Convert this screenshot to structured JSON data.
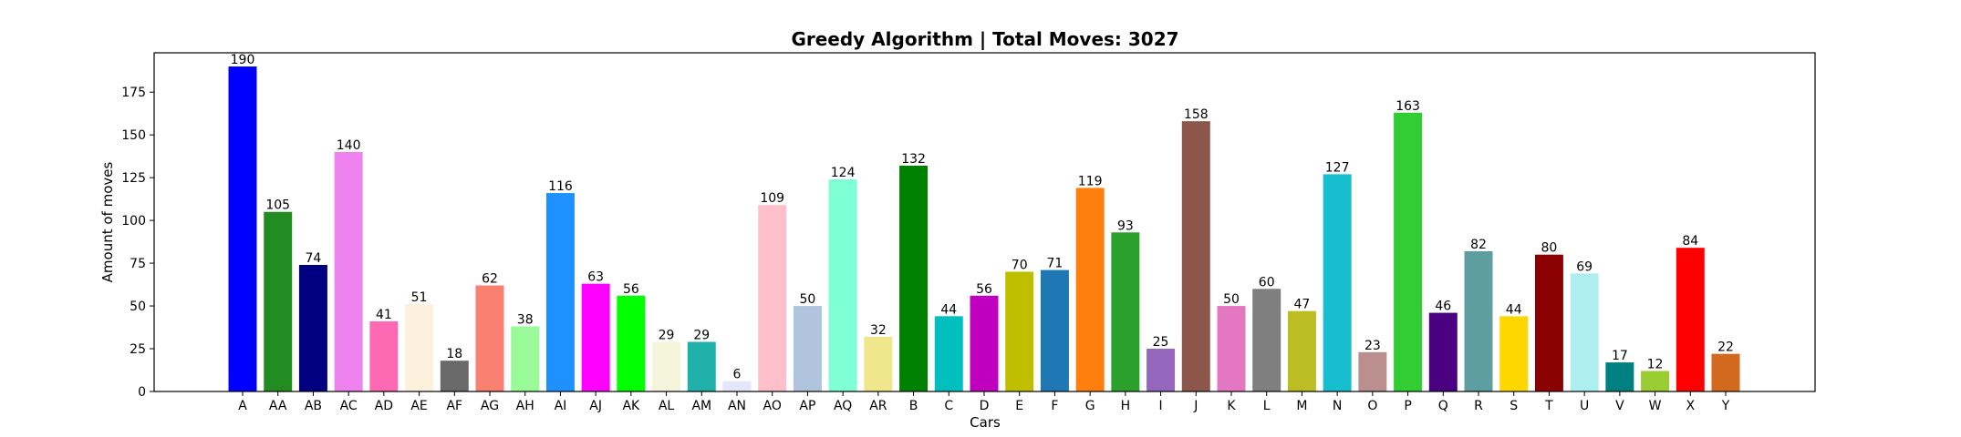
{
  "chart_data": {
    "type": "bar",
    "title": "Greedy Algorithm | Total Moves: 3027",
    "xlabel": "Cars",
    "ylabel": "Amount of moves",
    "ylim": [
      0,
      198
    ],
    "yticks": [
      0,
      25,
      50,
      75,
      100,
      125,
      150,
      175
    ],
    "grid": false,
    "categories": [
      "A",
      "AA",
      "AB",
      "AC",
      "AD",
      "AE",
      "AF",
      "AG",
      "AH",
      "AI",
      "AJ",
      "AK",
      "AL",
      "AM",
      "AN",
      "AO",
      "AP",
      "AQ",
      "AR",
      "B",
      "C",
      "D",
      "E",
      "F",
      "G",
      "H",
      "I",
      "J",
      "K",
      "L",
      "M",
      "N",
      "O",
      "P",
      "Q",
      "R",
      "S",
      "T",
      "U",
      "V",
      "W",
      "X",
      "Y"
    ],
    "values": [
      190,
      105,
      74,
      140,
      41,
      51,
      18,
      62,
      38,
      116,
      63,
      56,
      29,
      29,
      6,
      109,
      50,
      124,
      32,
      132,
      44,
      56,
      70,
      71,
      119,
      93,
      25,
      158,
      50,
      60,
      47,
      127,
      23,
      163,
      46,
      82,
      44,
      80,
      69,
      17,
      12,
      84,
      22
    ],
    "colors": [
      "#0000ff",
      "#228b22",
      "#000080",
      "#ee82ee",
      "#ff69b4",
      "#fdf0dc",
      "#696969",
      "#fa8072",
      "#98fb98",
      "#1e90ff",
      "#ff00ff",
      "#00ff00",
      "#f5f5dc",
      "#20b2aa",
      "#e6e6fa",
      "#ffc0cb",
      "#b0c4de",
      "#7fffd4",
      "#f0e68c",
      "#008000",
      "#00bfbf",
      "#bf00bf",
      "#bfbf00",
      "#1f77b4",
      "#ff7f0e",
      "#2ca02c",
      "#9467bd",
      "#8c564b",
      "#e377c2",
      "#7f7f7f",
      "#bcbd22",
      "#17becf",
      "#bc8f8f",
      "#32cd32",
      "#4b0082",
      "#5f9ea0",
      "#ffd700",
      "#8b0000",
      "#afeeee",
      "#008080",
      "#9acd32",
      "#ff0000",
      "#d2691e"
    ]
  }
}
